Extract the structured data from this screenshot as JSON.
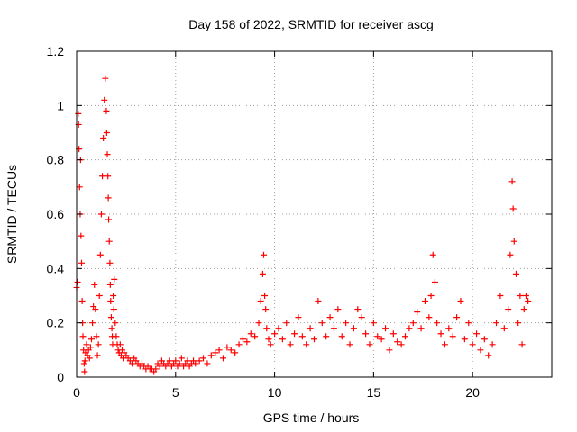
{
  "chart_data": {
    "type": "scatter",
    "title": "Day 158 of 2022, SRMTID for receiver ascg",
    "xlabel": "GPS time / hours",
    "ylabel": "SRMTID / TECUs",
    "xlim": [
      0,
      24
    ],
    "ylim": [
      0,
      1.2
    ],
    "x_ticks": [
      0,
      5,
      10,
      15,
      20
    ],
    "x_tick_labels": [
      "0",
      "5",
      "10",
      "15",
      "20"
    ],
    "y_ticks": [
      0,
      0.2,
      0.4,
      0.6,
      0.8,
      1.0,
      1.2
    ],
    "y_tick_labels": [
      "0",
      "0.2",
      "0.4",
      "0.6",
      "0.8",
      "1",
      "1.2"
    ],
    "grid": true,
    "legend": "none",
    "marker": "plus",
    "color": "#ff0000",
    "series": [
      {
        "name": "SRMTID",
        "x": [
          0.0,
          0.05,
          0.08,
          0.1,
          0.12,
          0.15,
          0.18,
          0.2,
          0.22,
          0.25,
          0.28,
          0.3,
          0.32,
          0.35,
          0.38,
          0.4,
          0.42,
          0.45,
          0.5,
          0.55,
          0.6,
          0.65,
          0.7,
          0.75,
          0.8,
          0.85,
          0.9,
          0.95,
          1.0,
          1.05,
          1.1,
          1.15,
          1.2,
          1.25,
          1.3,
          1.35,
          1.4,
          1.45,
          1.5,
          1.52,
          1.55,
          1.58,
          1.6,
          1.62,
          1.65,
          1.68,
          1.7,
          1.72,
          1.75,
          1.78,
          1.8,
          1.82,
          1.85,
          1.88,
          1.9,
          1.95,
          2.0,
          2.05,
          2.1,
          2.15,
          2.2,
          2.25,
          2.3,
          2.35,
          2.4,
          2.5,
          2.6,
          2.7,
          2.8,
          2.9,
          3.0,
          3.1,
          3.2,
          3.3,
          3.4,
          3.5,
          3.6,
          3.7,
          3.8,
          3.9,
          4.0,
          4.1,
          4.2,
          4.3,
          4.4,
          4.5,
          4.6,
          4.7,
          4.8,
          4.9,
          5.0,
          5.1,
          5.2,
          5.3,
          5.4,
          5.5,
          5.6,
          5.7,
          5.8,
          5.9,
          6.0,
          6.2,
          6.4,
          6.6,
          6.8,
          7.0,
          7.2,
          7.4,
          7.6,
          7.8,
          8.0,
          8.2,
          8.4,
          8.6,
          8.8,
          9.0,
          9.2,
          9.3,
          9.4,
          9.45,
          9.5,
          9.55,
          9.6,
          9.7,
          9.8,
          10.0,
          10.2,
          10.4,
          10.6,
          10.8,
          11.0,
          11.2,
          11.4,
          11.6,
          11.8,
          12.0,
          12.2,
          12.4,
          12.6,
          12.8,
          13.0,
          13.2,
          13.4,
          13.6,
          13.8,
          14.0,
          14.2,
          14.4,
          14.6,
          14.8,
          15.0,
          15.2,
          15.4,
          15.6,
          15.8,
          16.0,
          16.2,
          16.4,
          16.6,
          16.8,
          17.0,
          17.2,
          17.4,
          17.6,
          17.8,
          17.9,
          18.0,
          18.1,
          18.2,
          18.4,
          18.6,
          18.8,
          19.0,
          19.2,
          19.4,
          19.6,
          19.8,
          20.0,
          20.2,
          20.4,
          20.6,
          20.8,
          21.0,
          21.2,
          21.4,
          21.6,
          21.8,
          21.9,
          22.0,
          22.05,
          22.1,
          22.2,
          22.3,
          22.4,
          22.5,
          22.6,
          22.7,
          22.8
        ],
        "y": [
          0.33,
          0.35,
          0.97,
          0.93,
          0.84,
          0.7,
          0.6,
          0.8,
          0.52,
          0.42,
          0.28,
          0.2,
          0.15,
          0.1,
          0.05,
          0.02,
          0.06,
          0.09,
          0.12,
          0.08,
          0.1,
          0.07,
          0.11,
          0.14,
          0.2,
          0.26,
          0.34,
          0.25,
          0.15,
          0.08,
          0.12,
          0.3,
          0.45,
          0.6,
          0.74,
          0.88,
          1.02,
          1.1,
          0.98,
          0.9,
          0.82,
          0.74,
          0.66,
          0.58,
          0.5,
          0.42,
          0.34,
          0.28,
          0.22,
          0.18,
          0.15,
          0.12,
          0.3,
          0.25,
          0.36,
          0.2,
          0.15,
          0.12,
          0.1,
          0.09,
          0.12,
          0.08,
          0.1,
          0.07,
          0.09,
          0.08,
          0.07,
          0.06,
          0.05,
          0.07,
          0.06,
          0.05,
          0.04,
          0.05,
          0.04,
          0.03,
          0.04,
          0.03,
          0.03,
          0.02,
          0.03,
          0.05,
          0.04,
          0.06,
          0.05,
          0.04,
          0.05,
          0.06,
          0.04,
          0.05,
          0.06,
          0.04,
          0.05,
          0.07,
          0.04,
          0.05,
          0.06,
          0.04,
          0.05,
          0.06,
          0.05,
          0.06,
          0.07,
          0.05,
          0.08,
          0.09,
          0.1,
          0.07,
          0.11,
          0.1,
          0.09,
          0.12,
          0.14,
          0.13,
          0.16,
          0.15,
          0.2,
          0.28,
          0.38,
          0.45,
          0.3,
          0.25,
          0.18,
          0.14,
          0.12,
          0.16,
          0.18,
          0.14,
          0.2,
          0.12,
          0.16,
          0.22,
          0.15,
          0.12,
          0.18,
          0.14,
          0.28,
          0.2,
          0.15,
          0.22,
          0.18,
          0.25,
          0.15,
          0.2,
          0.12,
          0.18,
          0.25,
          0.22,
          0.16,
          0.12,
          0.2,
          0.15,
          0.14,
          0.18,
          0.1,
          0.16,
          0.13,
          0.12,
          0.15,
          0.18,
          0.2,
          0.24,
          0.18,
          0.28,
          0.22,
          0.3,
          0.45,
          0.35,
          0.2,
          0.16,
          0.12,
          0.18,
          0.15,
          0.22,
          0.28,
          0.14,
          0.2,
          0.12,
          0.16,
          0.1,
          0.14,
          0.08,
          0.12,
          0.2,
          0.3,
          0.18,
          0.25,
          0.45,
          0.72,
          0.62,
          0.5,
          0.38,
          0.2,
          0.3,
          0.12,
          0.25,
          0.3,
          0.28
        ]
      }
    ]
  }
}
